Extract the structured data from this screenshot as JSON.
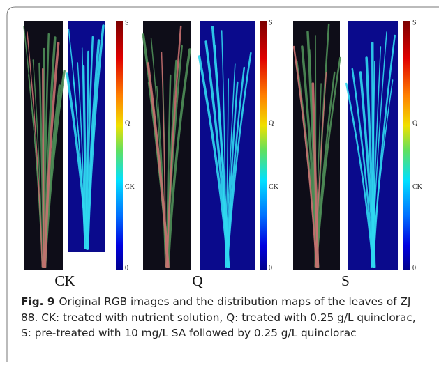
{
  "figure": {
    "panels": [
      {
        "label": "CK",
        "scale_labels": [
          "S",
          "Q",
          "CK",
          "0"
        ]
      },
      {
        "label": "Q",
        "scale_labels": [
          "S",
          "Q",
          "CK",
          "0"
        ]
      },
      {
        "label": "S",
        "scale_labels": [
          "S",
          "Q",
          "CK",
          "0"
        ]
      }
    ],
    "caption": {
      "label": "Fig. 9",
      "text": "Original RGB images and the distribution maps of the leaves of ZJ 88. CK: treated with nutrient solution, Q: treated with 0.25 g/L quinclorac, S: pre-treated with 10 mg/L SA followed by 0.25 g/L quinclorac"
    }
  }
}
